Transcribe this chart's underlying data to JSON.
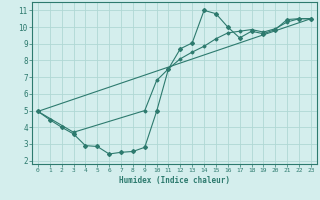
{
  "line1_x": [
    0,
    1,
    2,
    3,
    4,
    5,
    6,
    7,
    8,
    9,
    10,
    11,
    12,
    13,
    14,
    15,
    16,
    17,
    18,
    19,
    20,
    21,
    22,
    23
  ],
  "line1_y": [
    4.95,
    4.45,
    4.0,
    3.6,
    2.9,
    2.85,
    2.4,
    2.5,
    2.55,
    2.8,
    4.95,
    7.5,
    8.7,
    9.05,
    11.0,
    10.8,
    10.0,
    9.35,
    9.75,
    9.6,
    9.85,
    10.45,
    10.5,
    10.5
  ],
  "line2_x": [
    0,
    3,
    9,
    10,
    11,
    12,
    13,
    14,
    15,
    16,
    17,
    18,
    19,
    20,
    21,
    22,
    23
  ],
  "line2_y": [
    4.95,
    3.7,
    5.0,
    6.8,
    7.5,
    8.1,
    8.5,
    8.85,
    9.3,
    9.65,
    9.75,
    9.85,
    9.7,
    9.9,
    10.3,
    10.5,
    10.5
  ],
  "line3_x": [
    0,
    23
  ],
  "line3_y": [
    4.95,
    10.5
  ],
  "color": "#2d7a6e",
  "bg_color": "#d4eeed",
  "grid_color": "#b0d8d4",
  "xlabel": "Humidex (Indice chaleur)",
  "xlim": [
    -0.5,
    23.5
  ],
  "ylim": [
    1.8,
    11.5
  ],
  "yticks": [
    2,
    3,
    4,
    5,
    6,
    7,
    8,
    9,
    10,
    11
  ],
  "xticks": [
    0,
    1,
    2,
    3,
    4,
    5,
    6,
    7,
    8,
    9,
    10,
    11,
    12,
    13,
    14,
    15,
    16,
    17,
    18,
    19,
    20,
    21,
    22,
    23
  ]
}
